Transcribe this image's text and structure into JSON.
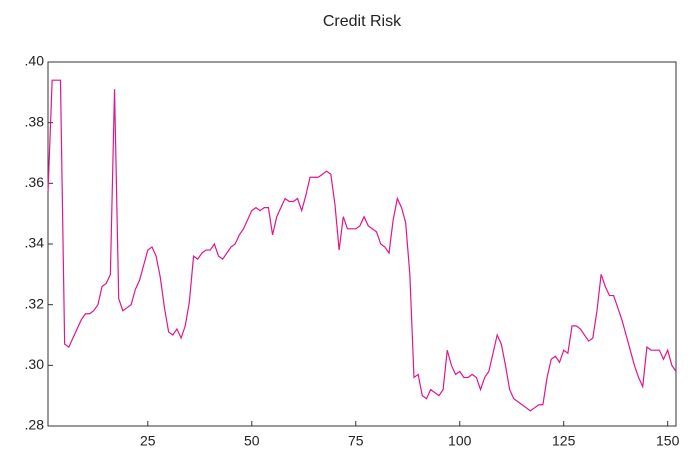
{
  "chart_data": {
    "type": "line",
    "title": "Credit Risk",
    "x": [
      1,
      2,
      3,
      4,
      5,
      6,
      7,
      8,
      9,
      10,
      11,
      12,
      13,
      14,
      15,
      16,
      17,
      18,
      19,
      20,
      21,
      22,
      23,
      24,
      25,
      26,
      27,
      28,
      29,
      30,
      31,
      32,
      33,
      34,
      35,
      36,
      37,
      38,
      39,
      40,
      41,
      42,
      43,
      44,
      45,
      46,
      47,
      48,
      49,
      50,
      51,
      52,
      53,
      54,
      55,
      56,
      57,
      58,
      59,
      60,
      61,
      62,
      63,
      64,
      65,
      66,
      67,
      68,
      69,
      70,
      71,
      72,
      73,
      74,
      75,
      76,
      77,
      78,
      79,
      80,
      81,
      82,
      83,
      84,
      85,
      86,
      87,
      88,
      89,
      90,
      91,
      92,
      93,
      94,
      95,
      96,
      97,
      98,
      99,
      100,
      101,
      102,
      103,
      104,
      105,
      106,
      107,
      108,
      109,
      110,
      111,
      112,
      113,
      114,
      115,
      116,
      117,
      118,
      119,
      120,
      121,
      122,
      123,
      124,
      125,
      126,
      127,
      128,
      129,
      130,
      131,
      132,
      133,
      134,
      135,
      136,
      137,
      138,
      139,
      140,
      141,
      142,
      143,
      144,
      145,
      146,
      147,
      148,
      149,
      150,
      151,
      152
    ],
    "series": [
      {
        "color": "#e0168c",
        "values": [
          0.357,
          0.394,
          0.394,
          0.394,
          0.307,
          0.306,
          0.309,
          0.312,
          0.315,
          0.317,
          0.317,
          0.318,
          0.32,
          0.326,
          0.327,
          0.33,
          0.391,
          0.322,
          0.318,
          0.319,
          0.32,
          0.325,
          0.328,
          0.333,
          0.338,
          0.339,
          0.336,
          0.329,
          0.319,
          0.311,
          0.31,
          0.312,
          0.309,
          0.313,
          0.321,
          0.336,
          0.335,
          0.337,
          0.338,
          0.338,
          0.34,
          0.336,
          0.335,
          0.337,
          0.339,
          0.34,
          0.343,
          0.345,
          0.348,
          0.351,
          0.352,
          0.351,
          0.352,
          0.352,
          0.343,
          0.349,
          0.352,
          0.355,
          0.354,
          0.354,
          0.355,
          0.351,
          0.356,
          0.362,
          0.362,
          0.362,
          0.363,
          0.364,
          0.363,
          0.353,
          0.338,
          0.349,
          0.345,
          0.345,
          0.345,
          0.346,
          0.349,
          0.346,
          0.345,
          0.344,
          0.34,
          0.339,
          0.337,
          0.348,
          0.355,
          0.352,
          0.347,
          0.33,
          0.296,
          0.297,
          0.29,
          0.289,
          0.292,
          0.291,
          0.29,
          0.292,
          0.305,
          0.3,
          0.297,
          0.298,
          0.296,
          0.296,
          0.297,
          0.296,
          0.292,
          0.296,
          0.298,
          0.304,
          0.31,
          0.307,
          0.3,
          0.292,
          0.289,
          0.288,
          0.287,
          0.286,
          0.285,
          0.286,
          0.287,
          0.287,
          0.296,
          0.302,
          0.303,
          0.301,
          0.305,
          0.304,
          0.313,
          0.313,
          0.312,
          0.31,
          0.308,
          0.309,
          0.318,
          0.33,
          0.326,
          0.323,
          0.323,
          0.319,
          0.315,
          0.31,
          0.305,
          0.3,
          0.296,
          0.293,
          0.306,
          0.305,
          0.305,
          0.305,
          0.302,
          0.305,
          0.3,
          0.298
        ]
      }
    ],
    "xlim": [
      1,
      152
    ],
    "xticks": [
      25,
      50,
      75,
      100,
      125,
      150
    ],
    "ylim": [
      0.28,
      0.4
    ],
    "yticks": [
      {
        "value": 0.28,
        "label": ".28"
      },
      {
        "value": 0.3,
        "label": ".30"
      },
      {
        "value": 0.32,
        "label": ".32"
      },
      {
        "value": 0.34,
        "label": ".34"
      },
      {
        "value": 0.36,
        "label": ".36"
      },
      {
        "value": 0.38,
        "label": ".38"
      },
      {
        "value": 0.4,
        "label": ".40"
      }
    ]
  }
}
